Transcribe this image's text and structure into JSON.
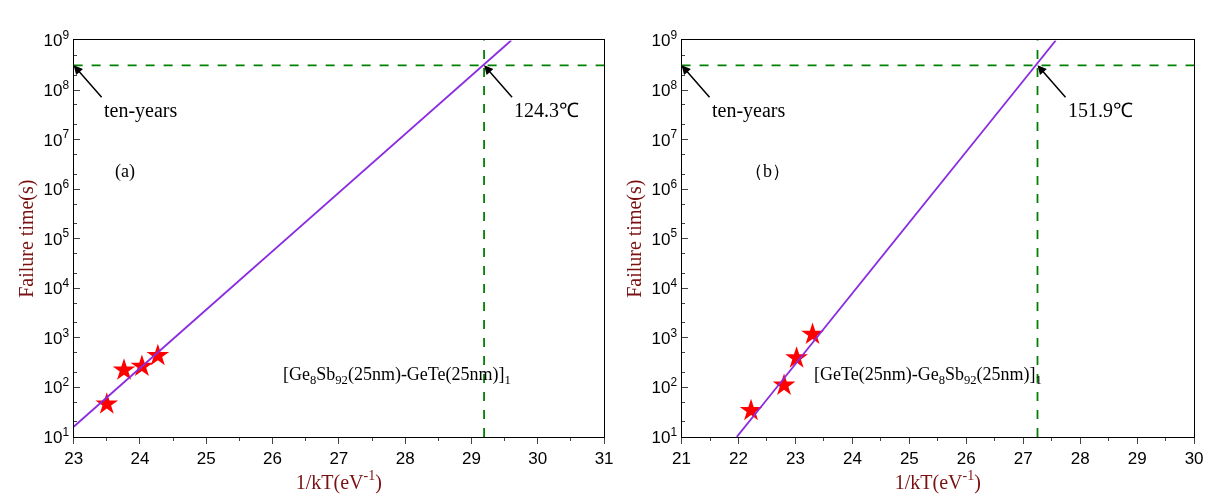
{
  "chart_data": [
    {
      "type": "scatter",
      "xlabel": "1/kT(eV$^{-1}$)",
      "ylabel": "Failure time(s)",
      "log": "y",
      "xlim": [
        23,
        31
      ],
      "xticks": [
        23,
        24,
        25,
        26,
        27,
        28,
        29,
        30,
        31
      ],
      "ylim": [
        10,
        1000000000
      ],
      "yticks": [
        {
          "value": 10,
          "label": "10$^{1}$"
        },
        {
          "value": 100,
          "label": "10$^{2}$"
        },
        {
          "value": 1000,
          "label": "10$^{3}$"
        },
        {
          "value": 10000,
          "label": "10$^{4}$"
        },
        {
          "value": 100000,
          "label": "10$^{5}$"
        },
        {
          "value": 1000000,
          "label": "10$^{6}$"
        },
        {
          "value": 10000000,
          "label": "10$^{7}$"
        },
        {
          "value": 100000000,
          "label": "10$^{8}$"
        },
        {
          "value": 1000000000,
          "label": "10$^{9}$"
        }
      ],
      "series": [
        {
          "marker": "star",
          "color": "#ff0000",
          "x": [
            23.5,
            23.76,
            24.03,
            24.27
          ],
          "values": [
            46,
            223,
            265,
            435
          ]
        },
        {
          "type": "line",
          "marker": "none",
          "color": "#8a2be2",
          "x": [
            23,
            29.6
          ],
          "values": [
            16,
            1000000000
          ]
        }
      ],
      "ref_lines": [
        {
          "axis": "y",
          "value": 315000000,
          "color": "#008000",
          "line_style": "dashed"
        },
        {
          "axis": "x",
          "value": 29.19,
          "color": "#008000",
          "line_style": "dashed"
        }
      ],
      "annotations": [
        {
          "text": "ten-years",
          "x": 23,
          "y": 315000000
        },
        {
          "text": "124.3℃",
          "x": 29.19,
          "y": 315000000
        },
        "(a)",
        "[Ge$_{8}$Sb$_{92}$(25nm)-GeTe(25nm)]$_{1}$"
      ]
    },
    {
      "type": "scatter",
      "xlabel": "1/kT(eV$^{-1}$)",
      "ylabel": "Failure time(s)",
      "log": "y",
      "xlim": [
        21,
        30
      ],
      "xticks": [
        21,
        22,
        23,
        24,
        25,
        26,
        27,
        28,
        29,
        30
      ],
      "ylim": [
        10,
        1000000000
      ],
      "yticks": [
        {
          "value": 10,
          "label": "10$^{1}$"
        },
        {
          "value": 100,
          "label": "10$^{2}$"
        },
        {
          "value": 1000,
          "label": "10$^{3}$"
        },
        {
          "value": 10000,
          "label": "10$^{4}$"
        },
        {
          "value": 100000,
          "label": "10$^{5}$"
        },
        {
          "value": 1000000,
          "label": "10$^{6}$"
        },
        {
          "value": 10000000,
          "label": "10$^{7}$"
        },
        {
          "value": 100000000,
          "label": "10$^{8}$"
        },
        {
          "value": 1000000000,
          "label": "10$^{9}$"
        }
      ],
      "series": [
        {
          "marker": "star",
          "color": "#ff0000",
          "x": [
            22.22,
            22.8,
            23.02,
            23.3
          ],
          "values": [
            34,
            110,
            390,
            1170
          ]
        },
        {
          "type": "line",
          "marker": "none",
          "color": "#8a2be2",
          "x": [
            21.97,
            27.57
          ],
          "values": [
            10,
            1000000000
          ]
        }
      ],
      "ref_lines": [
        {
          "axis": "y",
          "value": 315000000,
          "color": "#008000",
          "line_style": "dashed"
        },
        {
          "axis": "x",
          "value": 27.25,
          "color": "#008000",
          "line_style": "dashed"
        }
      ],
      "annotations": [
        {
          "text": "ten-years",
          "x": 21,
          "y": 315000000
        },
        {
          "text": "151.9℃",
          "x": 27.25,
          "y": 315000000
        },
        "（b）",
        "[GeTe(25nm)-Ge$_{8}$Sb$_{92}$(25nm)]$_{1}$"
      ]
    }
  ]
}
